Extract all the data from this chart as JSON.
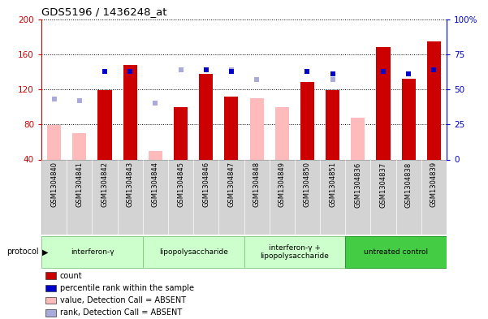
{
  "title": "GDS5196 / 1436248_at",
  "samples": [
    "GSM1304840",
    "GSM1304841",
    "GSM1304842",
    "GSM1304843",
    "GSM1304844",
    "GSM1304845",
    "GSM1304846",
    "GSM1304847",
    "GSM1304848",
    "GSM1304849",
    "GSM1304850",
    "GSM1304851",
    "GSM1304836",
    "GSM1304837",
    "GSM1304838",
    "GSM1304839"
  ],
  "count_values": [
    null,
    null,
    119,
    148,
    null,
    100,
    138,
    112,
    null,
    null,
    128,
    119,
    null,
    168,
    132,
    175
  ],
  "rank_pct": [
    null,
    null,
    63,
    63,
    null,
    null,
    64,
    63,
    null,
    null,
    63,
    61,
    null,
    63,
    61,
    64
  ],
  "absent_value_values": [
    79,
    70,
    null,
    null,
    50,
    null,
    126,
    null,
    110,
    100,
    null,
    null,
    88,
    null,
    null,
    null
  ],
  "absent_rank_pct": [
    43,
    42,
    null,
    null,
    40,
    64,
    null,
    64,
    57,
    null,
    null,
    57,
    null,
    null,
    null,
    64
  ],
  "groups": [
    {
      "name": "interferon-γ",
      "start": 0,
      "end": 4,
      "color": "#ccffcc",
      "border": "#88cc88"
    },
    {
      "name": "lipopolysaccharide",
      "start": 4,
      "end": 8,
      "color": "#ccffcc",
      "border": "#88cc88"
    },
    {
      "name": "interferon-γ +\nlipopolysaccharide",
      "start": 8,
      "end": 12,
      "color": "#ccffcc",
      "border": "#88cc88"
    },
    {
      "name": "untreated control",
      "start": 12,
      "end": 16,
      "color": "#44cc44",
      "border": "#229922"
    }
  ],
  "ylim_left": [
    40,
    200
  ],
  "ylim_right": [
    0,
    100
  ],
  "yticks_left": [
    40,
    80,
    120,
    160,
    200
  ],
  "yticks_right": [
    0,
    25,
    50,
    75,
    100
  ],
  "ytick_labels_left": [
    "40",
    "80",
    "120",
    "160",
    "200"
  ],
  "ytick_labels_right": [
    "0",
    "25",
    "50",
    "75",
    "100%"
  ],
  "left_axis_color": "#cc0000",
  "right_axis_color": "#0000cc",
  "count_color": "#cc0000",
  "absent_value_color": "#ffbbbb",
  "rank_color": "#0000cc",
  "absent_rank_color": "#aaaadd",
  "bar_width": 0.55,
  "marker_size": 5,
  "legend_items": [
    {
      "label": "count",
      "color": "#cc0000"
    },
    {
      "label": "percentile rank within the sample",
      "color": "#0000cc"
    },
    {
      "label": "value, Detection Call = ABSENT",
      "color": "#ffbbbb"
    },
    {
      "label": "rank, Detection Call = ABSENT",
      "color": "#aaaadd"
    }
  ]
}
